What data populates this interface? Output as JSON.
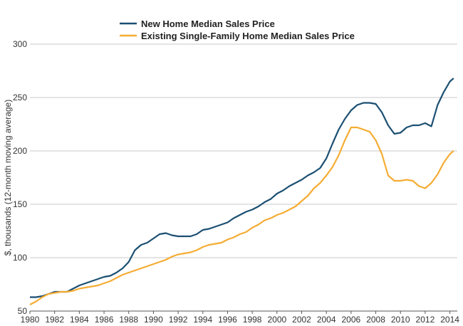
{
  "chart_data": {
    "type": "line",
    "title": "",
    "xlabel": "",
    "ylabel": "$, thousands (12-month moving average)",
    "xlim": [
      1980,
      2014.6
    ],
    "ylim": [
      50,
      300
    ],
    "x_ticks": [
      "1980",
      "1982",
      "1984",
      "1986",
      "1988",
      "1990",
      "1992",
      "1994",
      "1996",
      "1998",
      "2000",
      "2002",
      "2004",
      "2006",
      "2008",
      "2010",
      "2012",
      "2014"
    ],
    "y_ticks": [
      50,
      100,
      150,
      200,
      250,
      300
    ],
    "grid": "horizontal",
    "legend_position": "top",
    "series": [
      {
        "name": "New Home Median Sales Price",
        "color": "#1b4f72",
        "x": [
          1980,
          1980.5,
          1981,
          1981.5,
          1982,
          1982.5,
          1983,
          1983.5,
          1984,
          1984.5,
          1985,
          1985.5,
          1986,
          1986.5,
          1987,
          1987.5,
          1988,
          1988.5,
          1989,
          1989.5,
          1990,
          1990.5,
          1991,
          1991.5,
          1992,
          1992.5,
          1993,
          1993.5,
          1994,
          1994.5,
          1995,
          1995.5,
          1996,
          1996.5,
          1997,
          1997.5,
          1998,
          1998.5,
          1999,
          1999.5,
          2000,
          2000.5,
          2001,
          2001.5,
          2002,
          2002.5,
          2003,
          2003.5,
          2004,
          2004.5,
          2005,
          2005.5,
          2006,
          2006.5,
          2007,
          2007.5,
          2008,
          2008.5,
          2009,
          2009.5,
          2010,
          2010.5,
          2011,
          2011.5,
          2012,
          2012.5,
          2013,
          2013.5,
          2014,
          2014.3
        ],
        "values": [
          63,
          63,
          64,
          66,
          68,
          68,
          68,
          71,
          74,
          76,
          78,
          80,
          82,
          83,
          86,
          90,
          96,
          107,
          112,
          114,
          118,
          122,
          123,
          121,
          120,
          120,
          120,
          122,
          126,
          127,
          129,
          131,
          133,
          137,
          140,
          143,
          145,
          148,
          152,
          155,
          160,
          163,
          167,
          170,
          173,
          177,
          180,
          184,
          193,
          207,
          220,
          230,
          238,
          243,
          245,
          245,
          244,
          236,
          224,
          216,
          217,
          222,
          224,
          224,
          226,
          223,
          243,
          255,
          265,
          268
        ]
      },
      {
        "name": "Existing Single-Family Home Median Sales Price",
        "color": "#f5ac33",
        "x": [
          1980,
          1980.5,
          1981,
          1981.5,
          1982,
          1982.5,
          1983,
          1983.5,
          1984,
          1984.5,
          1985,
          1985.5,
          1986,
          1986.5,
          1987,
          1987.5,
          1988,
          1988.5,
          1989,
          1989.5,
          1990,
          1990.5,
          1991,
          1991.5,
          1992,
          1992.5,
          1993,
          1993.5,
          1994,
          1994.5,
          1995,
          1995.5,
          1996,
          1996.5,
          1997,
          1997.5,
          1998,
          1998.5,
          1999,
          1999.5,
          2000,
          2000.5,
          2001,
          2001.5,
          2002,
          2002.5,
          2003,
          2003.5,
          2004,
          2004.5,
          2005,
          2005.5,
          2006,
          2006.5,
          2007,
          2007.5,
          2008,
          2008.5,
          2009,
          2009.5,
          2010,
          2010.5,
          2011,
          2011.5,
          2012,
          2012.5,
          2013,
          2013.5,
          2014,
          2014.3
        ],
        "values": [
          56,
          59,
          63,
          66,
          67,
          68,
          68,
          69,
          71,
          72,
          73,
          74,
          76,
          78,
          81,
          84,
          86,
          88,
          90,
          92,
          94,
          96,
          98,
          101,
          103,
          104,
          105,
          107,
          110,
          112,
          113,
          114,
          117,
          119,
          122,
          124,
          128,
          131,
          135,
          137,
          140,
          142,
          145,
          148,
          153,
          158,
          165,
          170,
          177,
          185,
          196,
          210,
          222,
          222,
          220,
          218,
          210,
          197,
          177,
          172,
          172,
          173,
          172,
          167,
          165,
          170,
          178,
          189,
          197,
          200
        ]
      }
    ]
  }
}
